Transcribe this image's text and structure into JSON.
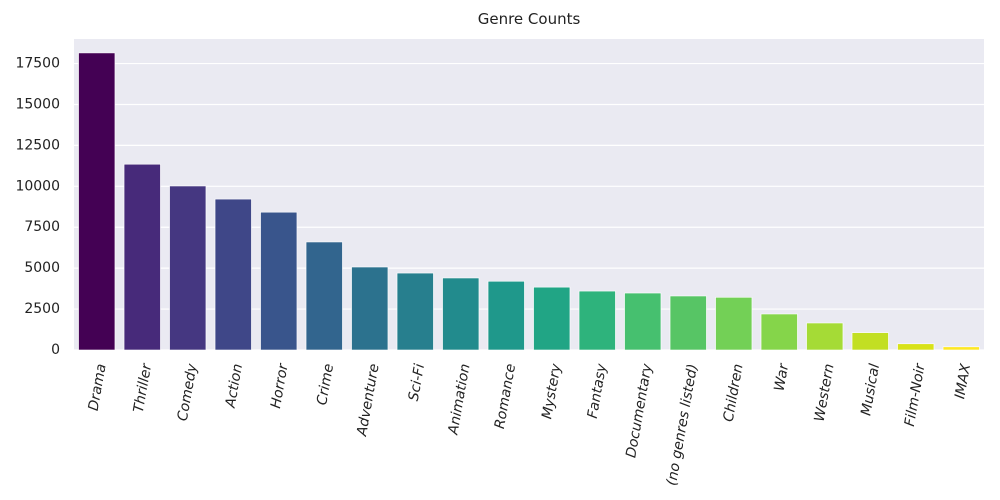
{
  "chart_data": {
    "type": "bar",
    "title": "Genre Counts",
    "xlabel": "",
    "ylabel": "",
    "categories": [
      "Drama",
      "Thriller",
      "Comedy",
      "Action",
      "Horror",
      "Crime",
      "Adventure",
      "Sci-Fi",
      "Animation",
      "Romance",
      "Mystery",
      "Fantasy",
      "Documentary",
      "(no genres listed)",
      "Children",
      "War",
      "Western",
      "Musical",
      "Film-Noir",
      "IMAX"
    ],
    "values": [
      18150,
      11350,
      10020,
      9220,
      8420,
      6600,
      5070,
      4700,
      4400,
      4200,
      3840,
      3600,
      3480,
      3300,
      3220,
      2200,
      1650,
      1060,
      380,
      195
    ],
    "ylim": [
      0,
      19000
    ],
    "yticks": [
      0,
      2500,
      5000,
      7500,
      10000,
      12500,
      15000,
      17500
    ],
    "ytick_labels": [
      "0",
      "2500",
      "5000",
      "7500",
      "10000",
      "12500",
      "15000",
      "17500"
    ],
    "grid": true,
    "colors": [
      "#440154",
      "#472a7a",
      "#453781",
      "#3f4788",
      "#39558c",
      "#32658e",
      "#2c728e",
      "#277f8e",
      "#228b8d",
      "#1f988b",
      "#21a585",
      "#2eb37c",
      "#46c06f",
      "#57c565",
      "#73d056",
      "#85d54a",
      "#a5db36",
      "#c2df23",
      "#d8e219",
      "#fde725"
    ],
    "axes_background": "#eaeaf2",
    "grid_color": "#ffffff"
  }
}
